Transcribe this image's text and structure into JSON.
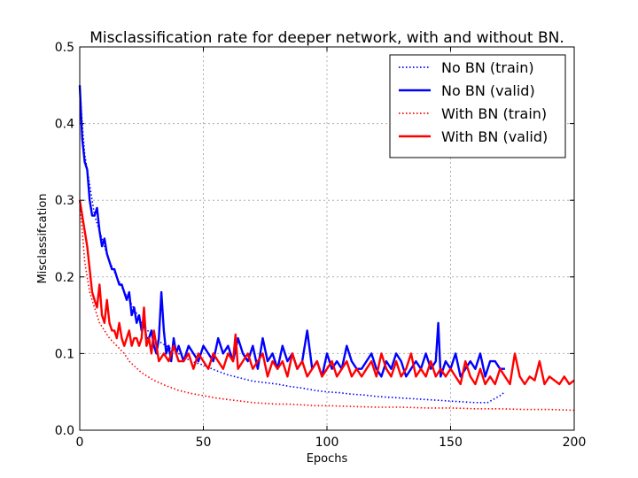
{
  "chart_data": {
    "type": "line",
    "title": "Misclassification rate for deeper network, with and without BN.",
    "xlabel": "Epochs",
    "ylabel": "Misclassifcation",
    "xlim": [
      0,
      200
    ],
    "ylim": [
      0,
      0.5
    ],
    "xticks": [
      0,
      50,
      100,
      150,
      200
    ],
    "yticks": [
      0.0,
      0.1,
      0.2,
      0.3,
      0.4,
      0.5
    ],
    "xtick_labels": [
      "0",
      "50",
      "100",
      "150",
      "200"
    ],
    "ytick_labels": [
      "0.0",
      "0.1",
      "0.2",
      "0.3",
      "0.4",
      "0.5"
    ],
    "grid": true,
    "legend_position": "top-right",
    "series": [
      {
        "name": "No BN (train)",
        "color": "#0000ff",
        "style": "dotted",
        "x": [
          0,
          1,
          2,
          3,
          4,
          5,
          6,
          8,
          10,
          12,
          15,
          18,
          20,
          25,
          30,
          35,
          40,
          45,
          50,
          55,
          60,
          65,
          70,
          75,
          80,
          85,
          90,
          95,
          100,
          105,
          110,
          115,
          120,
          125,
          130,
          135,
          140,
          145,
          150,
          155,
          160,
          165,
          170,
          172
        ],
        "y": [
          0.45,
          0.4,
          0.36,
          0.34,
          0.32,
          0.3,
          0.28,
          0.26,
          0.24,
          0.22,
          0.2,
          0.18,
          0.17,
          0.14,
          0.12,
          0.11,
          0.1,
          0.09,
          0.085,
          0.078,
          0.072,
          0.068,
          0.064,
          0.062,
          0.06,
          0.057,
          0.055,
          0.052,
          0.05,
          0.049,
          0.047,
          0.046,
          0.044,
          0.043,
          0.042,
          0.041,
          0.04,
          0.039,
          0.038,
          0.037,
          0.036,
          0.036,
          0.045,
          0.05
        ]
      },
      {
        "name": "No BN (valid)",
        "color": "#0000ff",
        "style": "solid",
        "x": [
          0,
          1,
          2,
          3,
          4,
          5,
          6,
          7,
          8,
          9,
          10,
          11,
          12,
          13,
          14,
          15,
          16,
          17,
          18,
          19,
          20,
          21,
          22,
          23,
          24,
          25,
          26,
          27,
          28,
          29,
          30,
          31,
          32,
          33,
          34,
          35,
          36,
          37,
          38,
          39,
          40,
          42,
          44,
          46,
          48,
          50,
          52,
          54,
          56,
          58,
          60,
          62,
          64,
          66,
          68,
          70,
          72,
          74,
          76,
          78,
          80,
          82,
          84,
          86,
          88,
          90,
          92,
          94,
          96,
          98,
          100,
          102,
          104,
          106,
          108,
          110,
          112,
          114,
          116,
          118,
          120,
          122,
          124,
          126,
          128,
          130,
          132,
          134,
          136,
          138,
          140,
          142,
          144,
          145,
          146,
          148,
          150,
          152,
          154,
          156,
          158,
          160,
          162,
          164,
          166,
          168,
          170,
          172
        ],
        "y": [
          0.45,
          0.38,
          0.35,
          0.34,
          0.3,
          0.28,
          0.28,
          0.29,
          0.26,
          0.24,
          0.25,
          0.23,
          0.22,
          0.21,
          0.21,
          0.2,
          0.19,
          0.19,
          0.18,
          0.17,
          0.18,
          0.15,
          0.16,
          0.14,
          0.15,
          0.13,
          0.14,
          0.12,
          0.12,
          0.13,
          0.11,
          0.1,
          0.12,
          0.18,
          0.13,
          0.1,
          0.11,
          0.09,
          0.12,
          0.1,
          0.11,
          0.09,
          0.11,
          0.1,
          0.09,
          0.11,
          0.1,
          0.09,
          0.12,
          0.1,
          0.11,
          0.09,
          0.12,
          0.1,
          0.09,
          0.11,
          0.08,
          0.12,
          0.09,
          0.1,
          0.08,
          0.11,
          0.09,
          0.1,
          0.08,
          0.09,
          0.13,
          0.08,
          0.09,
          0.07,
          0.1,
          0.08,
          0.09,
          0.08,
          0.11,
          0.09,
          0.08,
          0.08,
          0.09,
          0.1,
          0.08,
          0.07,
          0.09,
          0.08,
          0.1,
          0.09,
          0.07,
          0.08,
          0.09,
          0.08,
          0.1,
          0.08,
          0.09,
          0.14,
          0.07,
          0.09,
          0.08,
          0.1,
          0.07,
          0.08,
          0.09,
          0.08,
          0.1,
          0.07,
          0.09,
          0.09,
          0.08,
          0.08
        ]
      },
      {
        "name": "With BN (train)",
        "color": "#ff0000",
        "style": "dotted",
        "x": [
          0,
          1,
          2,
          3,
          4,
          6,
          8,
          10,
          12,
          15,
          18,
          20,
          25,
          30,
          35,
          40,
          45,
          50,
          55,
          60,
          65,
          70,
          75,
          80,
          85,
          90,
          95,
          100,
          110,
          120,
          130,
          140,
          150,
          160,
          170,
          180,
          190,
          200
        ],
        "y": [
          0.3,
          0.26,
          0.22,
          0.2,
          0.18,
          0.16,
          0.14,
          0.13,
          0.12,
          0.11,
          0.1,
          0.09,
          0.075,
          0.065,
          0.058,
          0.052,
          0.048,
          0.045,
          0.042,
          0.04,
          0.038,
          0.036,
          0.035,
          0.034,
          0.034,
          0.033,
          0.032,
          0.032,
          0.031,
          0.03,
          0.03,
          0.029,
          0.029,
          0.028,
          0.028,
          0.027,
          0.027,
          0.026
        ]
      },
      {
        "name": "With BN (valid)",
        "color": "#ff0000",
        "style": "solid",
        "x": [
          0,
          1,
          2,
          3,
          4,
          5,
          6,
          7,
          8,
          9,
          10,
          11,
          12,
          13,
          14,
          15,
          16,
          17,
          18,
          19,
          20,
          21,
          22,
          23,
          24,
          25,
          26,
          27,
          28,
          29,
          30,
          32,
          34,
          36,
          38,
          40,
          42,
          44,
          46,
          48,
          50,
          52,
          54,
          56,
          58,
          60,
          62,
          63,
          64,
          66,
          68,
          70,
          72,
          74,
          76,
          78,
          80,
          82,
          84,
          86,
          88,
          90,
          92,
          94,
          96,
          98,
          100,
          102,
          104,
          106,
          108,
          110,
          112,
          114,
          116,
          118,
          120,
          122,
          124,
          126,
          128,
          130,
          132,
          134,
          136,
          138,
          140,
          142,
          144,
          146,
          148,
          150,
          152,
          154,
          156,
          158,
          160,
          162,
          164,
          166,
          168,
          170,
          172,
          174,
          176,
          178,
          180,
          182,
          184,
          186,
          188,
          190,
          192,
          194,
          196,
          198,
          200
        ],
        "y": [
          0.3,
          0.28,
          0.26,
          0.24,
          0.21,
          0.18,
          0.17,
          0.16,
          0.19,
          0.15,
          0.14,
          0.17,
          0.14,
          0.13,
          0.13,
          0.12,
          0.14,
          0.12,
          0.11,
          0.12,
          0.13,
          0.11,
          0.12,
          0.12,
          0.11,
          0.12,
          0.16,
          0.11,
          0.12,
          0.1,
          0.13,
          0.09,
          0.1,
          0.09,
          0.11,
          0.09,
          0.09,
          0.1,
          0.08,
          0.1,
          0.09,
          0.08,
          0.1,
          0.09,
          0.08,
          0.1,
          0.09,
          0.125,
          0.08,
          0.09,
          0.1,
          0.08,
          0.09,
          0.1,
          0.07,
          0.09,
          0.08,
          0.09,
          0.07,
          0.1,
          0.08,
          0.09,
          0.07,
          0.08,
          0.09,
          0.07,
          0.08,
          0.09,
          0.07,
          0.08,
          0.09,
          0.07,
          0.08,
          0.07,
          0.08,
          0.09,
          0.07,
          0.1,
          0.08,
          0.07,
          0.09,
          0.07,
          0.08,
          0.1,
          0.07,
          0.08,
          0.07,
          0.09,
          0.07,
          0.08,
          0.07,
          0.08,
          0.07,
          0.06,
          0.09,
          0.07,
          0.06,
          0.08,
          0.06,
          0.07,
          0.06,
          0.08,
          0.07,
          0.06,
          0.1,
          0.07,
          0.06,
          0.07,
          0.065,
          0.09,
          0.06,
          0.07,
          0.065,
          0.06,
          0.07,
          0.06,
          0.065
        ]
      }
    ]
  }
}
